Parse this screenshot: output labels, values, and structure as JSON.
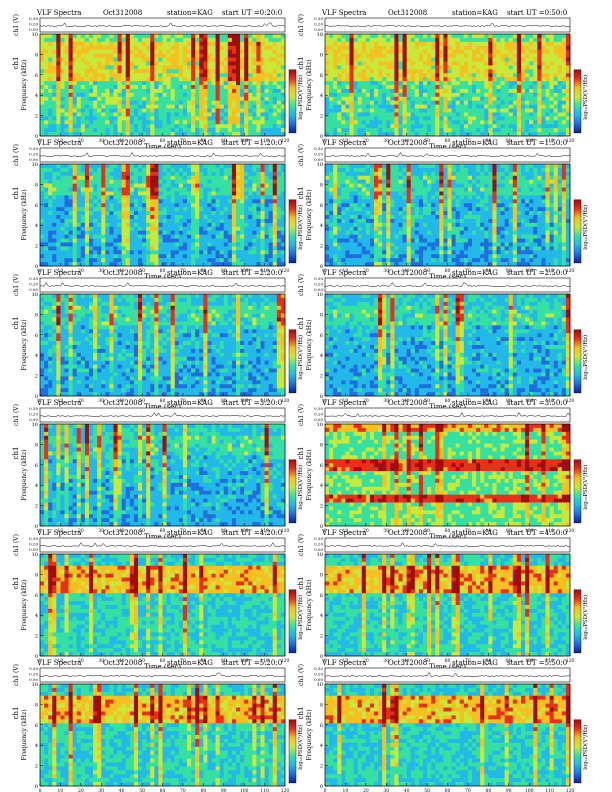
{
  "figure": {
    "series_title": "VLF Spectra",
    "date": "Oct312008",
    "station": "station=KAG",
    "start_prefix": "start  UT ="
  },
  "chart_data": [
    {
      "type": "heatmap",
      "start_time": "0:20:0",
      "colorbar_label": "log₁₀PSD(V²/Hz)",
      "pattern": "broadband"
    },
    {
      "type": "heatmap",
      "start_time": "0:50:0",
      "colorbar_label": "log₁₀PSD(V²/Hz)",
      "pattern": "broadband"
    },
    {
      "type": "heatmap",
      "start_time": "1:20:0",
      "colorbar_label": "log₁₀PSD(V²/Hz)",
      "pattern": "quiet"
    },
    {
      "type": "heatmap",
      "start_time": "1:50:0",
      "colorbar_label": "log₁₀PSD(V²/Hz)",
      "pattern": "quiet"
    },
    {
      "type": "heatmap",
      "start_time": "2:20:0",
      "colorbar_label": "log₁₀PSD(V²/Hz)",
      "pattern": "quiet"
    },
    {
      "type": "heatmap",
      "start_time": "2:50:0",
      "colorbar_label": "log₁₀PSD(V²/Hz)",
      "pattern": "quiet"
    },
    {
      "type": "heatmap",
      "start_time": "3:20:0",
      "colorbar_label": "log₁₀PSD(V²/Hz)",
      "pattern": "quiet"
    },
    {
      "type": "heatmap",
      "start_time": "3:50:0",
      "colorbar_label": "log₁₀PSD(V²/Hz)",
      "pattern": "bands"
    },
    {
      "type": "heatmap",
      "start_time": "4:20:0",
      "colorbar_label": "log₁₀PSD(V²/Hz)",
      "pattern": "upper"
    },
    {
      "type": "heatmap",
      "start_time": "4:50:0",
      "colorbar_label": "log₁₀PSD(V²/Hz)",
      "pattern": "upper"
    },
    {
      "type": "heatmap",
      "start_time": "5:20:0",
      "colorbar_label": "log₁₀PSD(V²/Hz)",
      "pattern": "upper"
    },
    {
      "type": "heatmap",
      "start_time": "5:50:0",
      "colorbar_label": "log₁₀PSD(V²/Hz)",
      "pattern": "upper"
    }
  ],
  "axes": {
    "xlabel": "Time  (sec)",
    "ylabel": "Frequency  (kHz)",
    "channel_label": "ch1",
    "top_label": "ch1 (V)",
    "x_ticks": [
      "0",
      "10",
      "20",
      "30",
      "40",
      "50",
      "60",
      "70",
      "80",
      "90",
      "100",
      "110",
      "120"
    ],
    "y_ticks": [
      "0",
      "2",
      "4",
      "6",
      "8",
      "10"
    ],
    "top_ticks": [
      "0.00",
      "0.20",
      "0.30"
    ],
    "xlim": [
      0,
      120
    ],
    "ylim": [
      0,
      10
    ]
  },
  "colorscale": [
    "#0a1f9e",
    "#1f6ee0",
    "#22b8e8",
    "#35e0a0",
    "#c8e83a",
    "#f5c020",
    "#e83018",
    "#a00c10"
  ]
}
